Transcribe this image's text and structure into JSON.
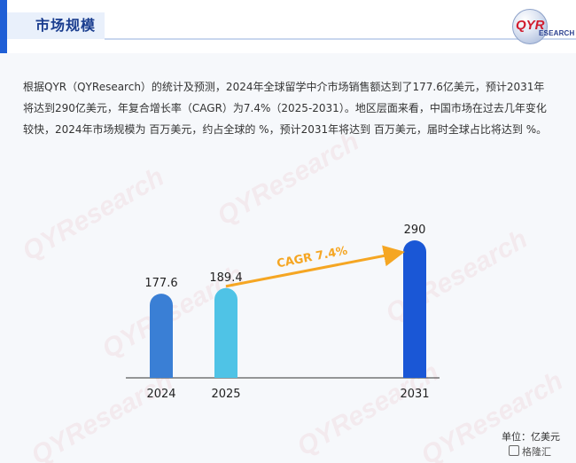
{
  "header": {
    "title": "市场规模",
    "logo_mark": "QYR",
    "logo_text": "ESEARCH"
  },
  "intro_text": "根据QYR（QYResearch）的统计及预测，2024年全球留学中介市场销售额达到了177.6亿美元，预计2031年将达到290亿美元，年复合增长率（CAGR）为7.4%（2025-2031）。地区层面来看，中国市场在过去几年变化较快，2024年市场规模为 百万美元，约占全球的 %，预计2031年将达到 百万美元，届时全球占比将达到 %。",
  "chart_data": {
    "type": "bar",
    "categories": [
      "2024",
      "2025",
      "2031"
    ],
    "values": [
      177.6,
      189.4,
      290
    ],
    "value_labels": [
      "177.6",
      "189.4",
      "290"
    ],
    "bar_colors": [
      "#3a7fd5",
      "#4fc3e6",
      "#1a57d6"
    ],
    "annotation": "CAGR 7.4%",
    "annotation_color": "#f5a623",
    "unit": "单位：亿美元"
  },
  "watermark_text": "QYResearch",
  "corner_mark": "格隆汇"
}
